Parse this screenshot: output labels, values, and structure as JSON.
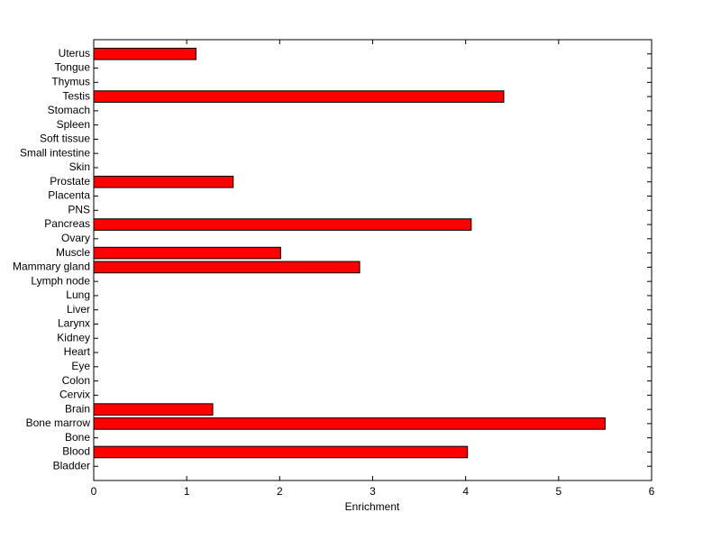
{
  "chart_data": {
    "type": "barh",
    "xlabel": "Enrichment",
    "categories": [
      "Bladder",
      "Blood",
      "Bone",
      "Bone marrow",
      "Brain",
      "Cervix",
      "Colon",
      "Eye",
      "Heart",
      "Kidney",
      "Larynx",
      "Liver",
      "Lung",
      "Lymph node",
      "Mammary gland",
      "Muscle",
      "Ovary",
      "Pancreas",
      "PNS",
      "Placenta",
      "Prostate",
      "Skin",
      "Small intestine",
      "Soft tissue",
      "Spleen",
      "Stomach",
      "Testis",
      "Thymus",
      "Tongue",
      "Uterus"
    ],
    "values": [
      0,
      4.02,
      0,
      5.5,
      1.28,
      0,
      0,
      0,
      0,
      0,
      0,
      0,
      0,
      0,
      2.86,
      2.01,
      0,
      4.06,
      0,
      0,
      1.5,
      0,
      0,
      0,
      0,
      0,
      4.41,
      0,
      0,
      1.1
    ],
    "color": "#ff0000",
    "xlim": [
      0,
      6
    ],
    "xticks": [
      0,
      1,
      2,
      3,
      4,
      5,
      6
    ]
  }
}
